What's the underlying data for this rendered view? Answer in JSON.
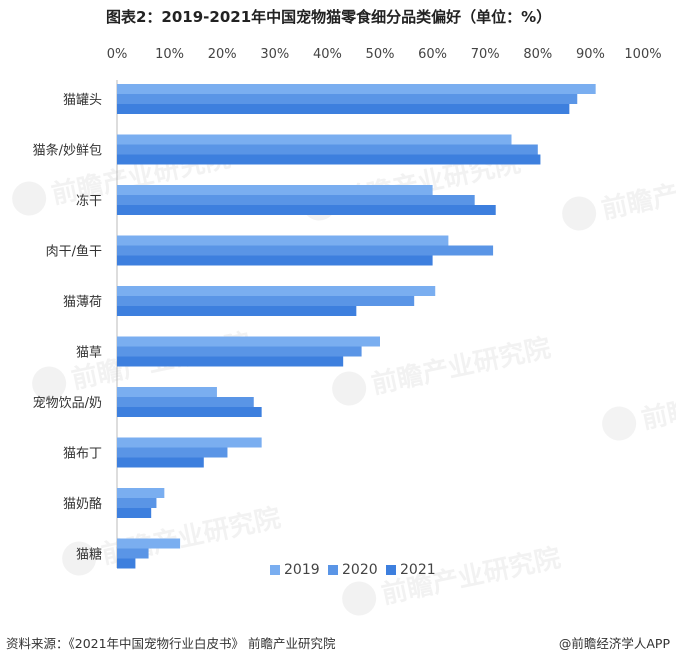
{
  "title": "图表2：2019-2021年中国宠物猫零食细分品类偏好（单位：%）",
  "source_text": "资料来源：《2021年中国宠物行业白皮书》 前瞻产业研究院",
  "brand_text": "@前瞻经济学人APP",
  "watermark_logo": "前瞻产业研究院",
  "chart_data": {
    "type": "bar",
    "orientation": "horizontal",
    "title": "图表2：2019-2021年中国宠物猫零食细分品类偏好（单位：%）",
    "xlim": [
      0,
      100
    ],
    "x_ticks": [
      "0%",
      "10%",
      "20%",
      "30%",
      "40%",
      "50%",
      "60%",
      "70%",
      "80%",
      "90%",
      "100%"
    ],
    "x_axis_position": "top",
    "grid": false,
    "legend_position": "bottom",
    "categories": [
      "猫罐头",
      "猫条/妙鲜包",
      "冻干",
      "肉干/鱼干",
      "猫薄荷",
      "猫草",
      "宠物饮品/奶",
      "猫布丁",
      "猫奶酪",
      "猫糖"
    ],
    "series": [
      {
        "name": "2019",
        "color": "#7aaef0",
        "values": [
          91,
          75,
          60,
          63,
          60.5,
          50,
          19,
          27.5,
          9,
          12
        ]
      },
      {
        "name": "2020",
        "color": "#5a95e6",
        "values": [
          87.5,
          80,
          68,
          71.5,
          56.5,
          46.5,
          26,
          21,
          7.5,
          6
        ]
      },
      {
        "name": "2021",
        "color": "#3d7fde",
        "values": [
          86,
          80.5,
          72,
          60,
          45.5,
          43,
          27.5,
          16.5,
          6.5,
          3.5
        ]
      }
    ]
  }
}
